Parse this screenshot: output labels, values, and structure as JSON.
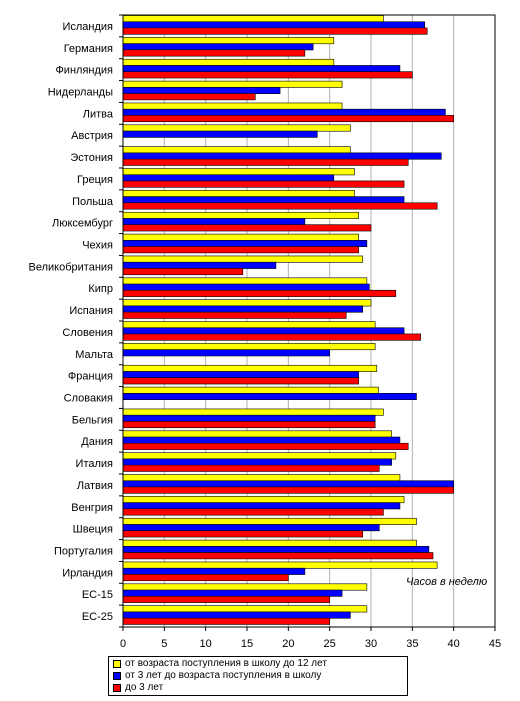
{
  "chart_data": {
    "type": "bar",
    "orientation": "horizontal",
    "unit_note": "Часов в неделю",
    "categories": [
      "Исландия",
      "Германия",
      "Финляндия",
      "Нидерланды",
      "Литва",
      "Австрия",
      "Эстония",
      "Греция",
      "Польша",
      "Люксембург",
      "Чехия",
      "Великобритания",
      "Кипр",
      "Испания",
      "Словения",
      "Мальта",
      "Франция",
      "Словакия",
      "Бельгия",
      "Дания",
      "Италия",
      "Латвия",
      "Венгрия",
      "Швеция",
      "Португалия",
      "Ирландия",
      "ЕС-15",
      "ЕС-25"
    ],
    "series": [
      {
        "name": "от возраста поступления в школу до 12 лет",
        "color": "#FFFF00",
        "values": [
          31.5,
          25.5,
          25.5,
          26.5,
          26.5,
          27.5,
          27.5,
          28.0,
          28.0,
          28.5,
          28.5,
          29.0,
          29.5,
          30.0,
          30.5,
          30.5,
          30.7,
          30.9,
          31.5,
          32.5,
          33.0,
          33.5,
          34.0,
          35.5,
          35.5,
          38.0,
          29.5,
          29.5
        ]
      },
      {
        "name": "от 3 лет до возраста поступления в школу",
        "color": "#0000FF",
        "values": [
          36.5,
          23.0,
          33.5,
          19.0,
          39.0,
          23.5,
          38.5,
          25.5,
          34.0,
          22.0,
          29.5,
          18.5,
          29.8,
          29.0,
          34.0,
          25.0,
          28.5,
          35.5,
          30.5,
          33.5,
          32.5,
          40.0,
          33.5,
          31.0,
          37.0,
          22.0,
          26.5,
          27.5
        ]
      },
      {
        "name": "до 3 лет",
        "color": "#FF0000",
        "values": [
          36.8,
          22.0,
          35.0,
          16.0,
          40.0,
          null,
          34.5,
          34.0,
          38.0,
          30.0,
          28.5,
          14.5,
          33.0,
          27.0,
          36.0,
          null,
          28.5,
          null,
          30.5,
          34.5,
          31.0,
          40.0,
          31.5,
          29.0,
          37.5,
          20.0,
          25.0,
          25.0
        ]
      }
    ],
    "xlim": [
      0,
      45
    ],
    "xticks": [
      0,
      5,
      10,
      15,
      20,
      25,
      30,
      35,
      40,
      45
    ],
    "grid": true,
    "legend_position": "bottom"
  }
}
